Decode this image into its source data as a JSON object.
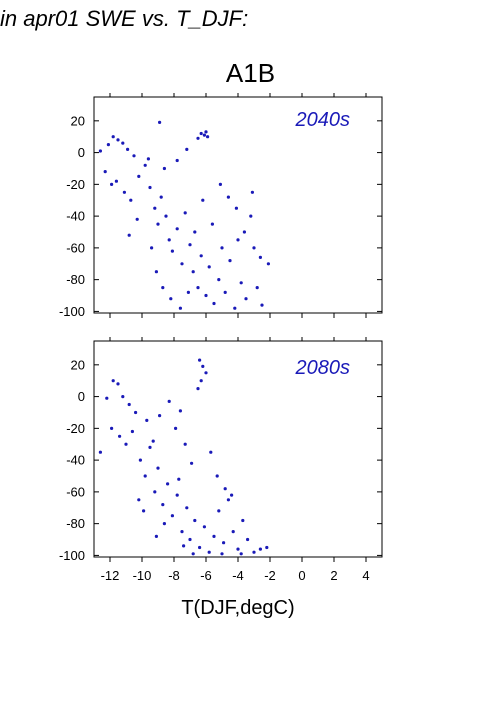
{
  "heading": "in apr01 SWE vs. T_DJF:",
  "scenario_title": "A1B",
  "colors": {
    "points": "#1a1ab8",
    "axes": "#000000"
  },
  "chart_data": [
    {
      "type": "scatter",
      "panel_label": "2040s",
      "xlabel": "T(DJF,degC)",
      "ylabel": "",
      "xlim": [
        -13,
        5
      ],
      "ylim": [
        -101,
        35
      ],
      "xticks": [
        -12,
        -10,
        -8,
        -6,
        -4,
        -2,
        0,
        2,
        4
      ],
      "yticks": [
        20,
        0,
        -20,
        -40,
        -60,
        -80,
        -100
      ],
      "x_tick_labels_shown": false,
      "grid": false,
      "series": [
        {
          "points": [
            [
              -12.6,
              1
            ],
            [
              -12.1,
              5
            ],
            [
              -11.8,
              10
            ],
            [
              -11.5,
              8
            ],
            [
              -11.2,
              6
            ],
            [
              -10.9,
              2
            ],
            [
              -10.5,
              -2
            ],
            [
              -12.3,
              -12
            ],
            [
              -11.9,
              -20
            ],
            [
              -11.6,
              -18
            ],
            [
              -11.1,
              -25
            ],
            [
              -10.7,
              -30
            ],
            [
              -10.2,
              -15
            ],
            [
              -9.8,
              -8
            ],
            [
              -9.5,
              -22
            ],
            [
              -9.2,
              -35
            ],
            [
              -9.0,
              -45
            ],
            [
              -8.8,
              -28
            ],
            [
              -8.5,
              -40
            ],
            [
              -8.3,
              -55
            ],
            [
              -8.1,
              -62
            ],
            [
              -7.8,
              -48
            ],
            [
              -7.5,
              -70
            ],
            [
              -7.3,
              -38
            ],
            [
              -7.0,
              -58
            ],
            [
              -6.8,
              -75
            ],
            [
              -6.5,
              -85
            ],
            [
              -6.3,
              -65
            ],
            [
              -6.0,
              -90
            ],
            [
              -5.8,
              -72
            ],
            [
              -5.5,
              -95
            ],
            [
              -5.2,
              -80
            ],
            [
              -5.0,
              -60
            ],
            [
              -4.8,
              -88
            ],
            [
              -4.5,
              -68
            ],
            [
              -4.2,
              -98
            ],
            [
              -4.0,
              -55
            ],
            [
              -3.8,
              -82
            ],
            [
              -3.5,
              -92
            ],
            [
              -3.2,
              -40
            ],
            [
              -3.0,
              -60
            ],
            [
              -2.8,
              -85
            ],
            [
              -2.5,
              -96
            ],
            [
              -2.1,
              -70
            ],
            [
              -2.6,
              -66
            ],
            [
              -3.1,
              -25
            ],
            [
              -8.9,
              19
            ],
            [
              -6.3,
              12
            ],
            [
              -6.0,
              13
            ],
            [
              -5.9,
              10
            ],
            [
              -6.5,
              9
            ],
            [
              -6.1,
              11
            ],
            [
              -7.2,
              2
            ],
            [
              -7.8,
              -5
            ],
            [
              -8.6,
              -10
            ],
            [
              -9.6,
              -4
            ],
            [
              -10.3,
              -42
            ],
            [
              -10.8,
              -52
            ],
            [
              -9.4,
              -60
            ],
            [
              -9.1,
              -75
            ],
            [
              -8.7,
              -85
            ],
            [
              -8.2,
              -92
            ],
            [
              -7.6,
              -98
            ],
            [
              -7.1,
              -88
            ],
            [
              -6.7,
              -50
            ],
            [
              -6.2,
              -30
            ],
            [
              -5.6,
              -45
            ],
            [
              -5.1,
              -20
            ],
            [
              -4.6,
              -28
            ],
            [
              -4.1,
              -35
            ],
            [
              -3.6,
              -50
            ]
          ]
        }
      ]
    },
    {
      "type": "scatter",
      "panel_label": "2080s",
      "xlabel": "T(DJF,degC)",
      "ylabel": "",
      "xlim": [
        -13,
        5
      ],
      "ylim": [
        -101,
        35
      ],
      "xticks": [
        -12,
        -10,
        -8,
        -6,
        -4,
        -2,
        0,
        2,
        4
      ],
      "yticks": [
        20,
        0,
        -20,
        -40,
        -60,
        -80,
        -100
      ],
      "x_tick_labels_shown": true,
      "grid": false,
      "series": [
        {
          "points": [
            [
              -12.2,
              -1
            ],
            [
              -11.8,
              10
            ],
            [
              -11.5,
              8
            ],
            [
              -11.2,
              0
            ],
            [
              -10.8,
              -5
            ],
            [
              -10.4,
              -10
            ],
            [
              -12.6,
              -35
            ],
            [
              -11.9,
              -20
            ],
            [
              -11.4,
              -25
            ],
            [
              -11.0,
              -30
            ],
            [
              -10.6,
              -22
            ],
            [
              -10.1,
              -40
            ],
            [
              -9.8,
              -50
            ],
            [
              -9.5,
              -32
            ],
            [
              -9.2,
              -60
            ],
            [
              -9.0,
              -45
            ],
            [
              -8.7,
              -68
            ],
            [
              -8.4,
              -55
            ],
            [
              -8.1,
              -75
            ],
            [
              -7.8,
              -62
            ],
            [
              -7.5,
              -85
            ],
            [
              -7.2,
              -70
            ],
            [
              -7.0,
              -90
            ],
            [
              -6.7,
              -78
            ],
            [
              -6.4,
              -95
            ],
            [
              -6.1,
              -82
            ],
            [
              -5.8,
              -98
            ],
            [
              -5.5,
              -88
            ],
            [
              -5.2,
              -72
            ],
            [
              -4.9,
              -92
            ],
            [
              -4.6,
              -65
            ],
            [
              -4.3,
              -85
            ],
            [
              -4.0,
              -96
            ],
            [
              -3.7,
              -78
            ],
            [
              -3.4,
              -90
            ],
            [
              -3.0,
              -98
            ],
            [
              -2.6,
              -96
            ],
            [
              -2.2,
              -95
            ],
            [
              -6.4,
              23
            ],
            [
              -6.2,
              19
            ],
            [
              -6.0,
              15
            ],
            [
              -6.3,
              10
            ],
            [
              -6.5,
              5
            ],
            [
              -7.6,
              -9
            ],
            [
              -8.3,
              -3
            ],
            [
              -8.9,
              -12
            ],
            [
              -9.7,
              -15
            ],
            [
              -9.3,
              -28
            ],
            [
              -7.9,
              -20
            ],
            [
              -7.3,
              -30
            ],
            [
              -6.9,
              -42
            ],
            [
              -5.7,
              -35
            ],
            [
              -5.3,
              -50
            ],
            [
              -4.8,
              -58
            ],
            [
              -4.4,
              -62
            ],
            [
              -7.7,
              -52
            ],
            [
              -8.6,
              -80
            ],
            [
              -9.1,
              -88
            ],
            [
              -7.4,
              -94
            ],
            [
              -6.8,
              -99
            ],
            [
              -5.0,
              -99
            ],
            [
              -3.8,
              -99
            ],
            [
              -10.2,
              -65
            ],
            [
              -9.9,
              -72
            ]
          ]
        }
      ]
    }
  ]
}
